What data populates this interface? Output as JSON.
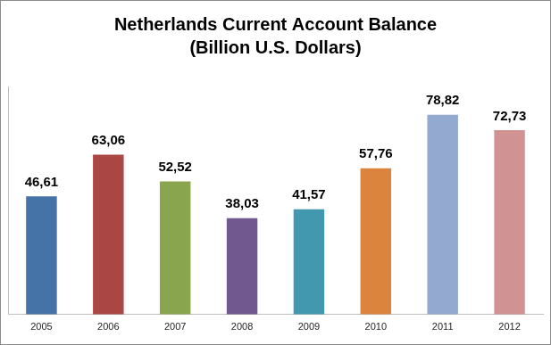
{
  "chart_data": {
    "type": "bar",
    "title": [
      "Netherlands Current Account Balance",
      "(Billion U.S. Dollars)"
    ],
    "categories": [
      "2005",
      "2006",
      "2007",
      "2008",
      "2009",
      "2010",
      "2011",
      "2012"
    ],
    "values": [
      46.61,
      63.06,
      52.52,
      38.03,
      41.57,
      57.76,
      78.82,
      72.73
    ],
    "value_labels": [
      "46,61",
      "63,06",
      "52,52",
      "38,03",
      "41,57",
      "57,76",
      "78,82",
      "72,73"
    ],
    "colors": [
      "#4572a7",
      "#aa4643",
      "#89a54e",
      "#71588f",
      "#4198af",
      "#db843d",
      "#93a9cf",
      "#d19392"
    ],
    "ylim": [
      0,
      90
    ],
    "grid": false,
    "data_labels": true,
    "tick_labels": "x"
  }
}
